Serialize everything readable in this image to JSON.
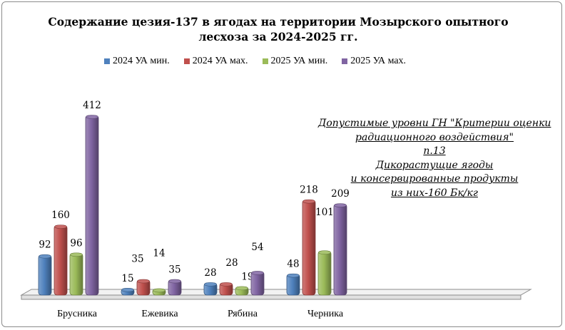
{
  "chart_data": {
    "type": "bar",
    "title": "Содержание цезия-137 в ягодах на территории Мозырского опытного лесхоза за 2024-2025 гг.",
    "title_lines": [
      "Содержание цезия-137 в ягодах на территории Мозырского опытного",
      "лесхоза за 2024-2025 гг."
    ],
    "categories": [
      "Брусника",
      "Ежевика",
      "Рябина",
      "Черника"
    ],
    "series": [
      {
        "name": "2024 УА мин.",
        "color": "#4f81bd",
        "values": [
          92,
          15,
          28,
          48
        ],
        "labels": [
          "92",
          "15",
          "28",
          "48"
        ]
      },
      {
        "name": "2024 УА мах.",
        "color": "#c0504d",
        "values": [
          160,
          35,
          28,
          218
        ],
        "labels": [
          "160",
          "35",
          "28",
          "218"
        ]
      },
      {
        "name": "2025 УА мин.",
        "color": "#9bbb59",
        "values": [
          96,
          14,
          19,
          101
        ],
        "labels": [
          "96",
          "14",
          "19",
          "101"
        ]
      },
      {
        "name": "2025 УА мах.",
        "color": "#8064a2",
        "values": [
          412,
          35,
          54,
          209
        ],
        "labels": [
          "412",
          "35",
          "54",
          "209"
        ]
      }
    ],
    "legend_position": "top",
    "grid": false,
    "ylim": [
      0,
      440
    ],
    "three_d": true,
    "annotation_lines": [
      "Допустимые уровни ГН \"Критерии оценки",
      "радиационного воздействия\"",
      "п.13",
      "Дикорастущие ягоды",
      "и консервированные продукты",
      "из них-160 Бк/кг"
    ]
  }
}
